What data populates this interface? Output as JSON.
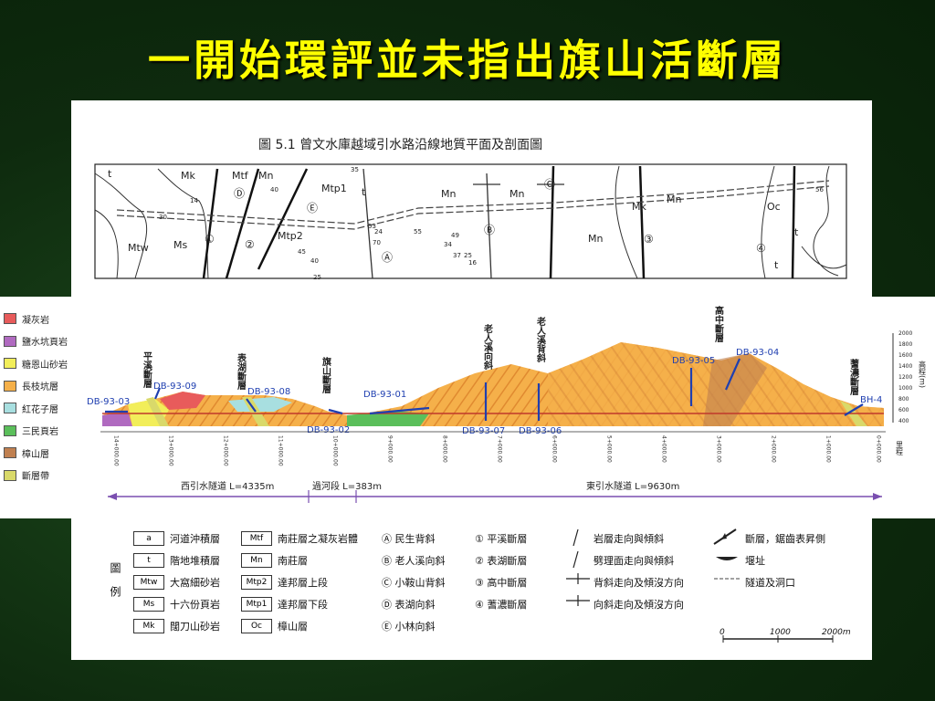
{
  "slide_title": "一開始環評並未指出旗山活斷層",
  "plan": {
    "figure_title": "圖 5.1  曾文水庫越域引水路沿線地質平面及剖面圖",
    "units": [
      "t",
      "Mk",
      "Mtf",
      "Mn",
      "Mtp1",
      "Mtp2",
      "Mn",
      "Mn",
      "Mk",
      "Mn",
      "Oc",
      "t",
      "t",
      "Mtw",
      "Ms",
      "Mn",
      "t"
    ],
    "dips": [
      "14",
      "30",
      "40",
      "35",
      "55",
      "49",
      "34",
      "37",
      "25",
      "16",
      "45",
      "40",
      "53",
      "70",
      "24",
      "56",
      "25"
    ],
    "circled": [
      "①",
      "②",
      "③",
      "④",
      "Ⓐ",
      "Ⓑ",
      "Ⓒ",
      "Ⓓ",
      "Ⓔ"
    ]
  },
  "section": {
    "legend": [
      {
        "label": "凝灰岩",
        "color": "#e85b5b"
      },
      {
        "label": "鹽水坑頁岩",
        "color": "#b06ac0"
      },
      {
        "label": "糖恩山砂岩",
        "color": "#f2ee5a"
      },
      {
        "label": "長枝坑層",
        "color": "#f5b04a"
      },
      {
        "label": "紅花子層",
        "color": "#a8dfe0"
      },
      {
        "label": "三民頁岩",
        "color": "#5bbf5b"
      },
      {
        "label": "樟山層",
        "color": "#c08050"
      },
      {
        "label": "斷層帶",
        "color": "#d9d96a"
      }
    ],
    "boreholes": [
      "DB-93-03",
      "DB-93-09",
      "DB-93-08",
      "DB-93-02",
      "DB-93-01",
      "DB-93-07",
      "DB-93-06",
      "DB-93-05",
      "DB-93-04",
      "BH-4"
    ],
    "structures": [
      "平溪斷層",
      "表湖斷層",
      "旗山斷層",
      "老人溪向斜",
      "老人溪背斜",
      "高中斷層",
      "蓍濃斷層"
    ],
    "elevations": [
      "2000",
      "1800",
      "1600",
      "1400",
      "1200",
      "1000",
      "800",
      "600",
      "400"
    ],
    "elev_label": "高程(m)",
    "chainage": [
      "14+000.00",
      "13+000.00",
      "12+000.00",
      "11+000.00",
      "10+000.00",
      "9+000.00",
      "8+000.00",
      "7+000.00",
      "6+000.00",
      "5+000.00",
      "4+000.00",
      "3+000.00",
      "2+000.00",
      "1+000.00",
      "0+000.00"
    ],
    "chainage_label": "里程",
    "tunnels": [
      {
        "label": "西引水隧道  L=4335m"
      },
      {
        "label": "過河段  L=383m"
      },
      {
        "label": "東引水隧道  L=9630m"
      }
    ]
  },
  "legend": {
    "title": "圖例",
    "units": [
      {
        "code": "a",
        "name": "河道沖積層"
      },
      {
        "code": "t",
        "name": "階地堆積層"
      },
      {
        "code": "Mtw",
        "name": "大窩細砂岩"
      },
      {
        "code": "Ms",
        "name": "十六份頁岩"
      },
      {
        "code": "Mk",
        "name": "闊刀山砂岩"
      }
    ],
    "units2": [
      {
        "code": "Mtf",
        "name": "南莊層之凝灰岩體"
      },
      {
        "code": "Mn",
        "name": "南莊層"
      },
      {
        "code": "Mtp2",
        "name": "達邦層上段"
      },
      {
        "code": "Mtp1",
        "name": "達邦層下段"
      },
      {
        "code": "Oc",
        "name": "樟山層"
      }
    ],
    "folds": [
      "Ⓐ 民生背斜",
      "Ⓑ 老人溪向斜",
      "Ⓒ 小鞍山背斜",
      "Ⓓ 表湖向斜",
      "Ⓔ 小林向斜"
    ],
    "faults": [
      "① 平溪斷層",
      "② 表湖斷層",
      "③ 高中斷層",
      "④ 蓍濃斷層"
    ],
    "symbols": [
      "岩層走向與傾斜",
      "劈理面走向與傾斜",
      "背斜走向及傾沒方向",
      "向斜走向及傾沒方向"
    ],
    "symbols2": [
      "斷層，鋸齒表昇側",
      "堰址",
      "隧道及洞口"
    ],
    "scale": [
      "0",
      "1000",
      "2000m"
    ]
  }
}
